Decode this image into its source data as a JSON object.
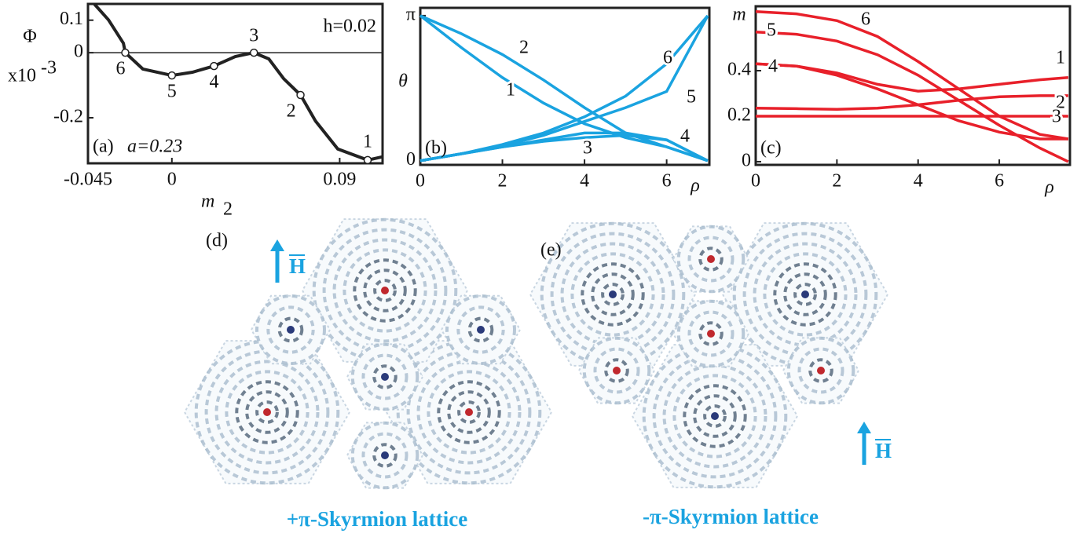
{
  "chart_data": [
    {
      "type": "line",
      "panel_label": "(a)",
      "annotation": "a=0.23",
      "note": "h=0.02",
      "y_label": "Φ",
      "y_multiplier": {
        "base": "x10",
        "exponent": "-3"
      },
      "x_label": {
        "base": "m",
        "sub": "2"
      },
      "x": [
        -0.0415,
        -0.034,
        -0.026,
        -0.025,
        -0.0156,
        0,
        0.011,
        0.0226,
        0.034,
        0.044,
        0.052,
        0.06,
        0.069,
        0.077,
        0.089,
        0.105,
        0.113
      ],
      "values": [
        0.149,
        0.101,
        0.029,
        0,
        -0.05,
        -0.07,
        -0.06,
        -0.041,
        -0.012,
        0,
        -0.019,
        -0.08,
        -0.13,
        -0.21,
        -0.296,
        -0.33,
        -0.32
      ],
      "color": "#222222",
      "points": {
        "x": [
          -0.025,
          0,
          0.0226,
          0.044,
          0.069,
          0.105
        ],
        "y": [
          0,
          -0.07,
          -0.041,
          0,
          -0.13,
          -0.33
        ],
        "labels": [
          "6",
          "5",
          "4",
          "3",
          "2",
          "1"
        ]
      },
      "zero_line": true,
      "xlim": [
        -0.045,
        0.113
      ],
      "ylim": [
        -0.34,
        0.15
      ],
      "xticks": [
        -0.045,
        0,
        0.09
      ],
      "yticks": [
        0.1,
        0,
        -0.2
      ]
    },
    {
      "type": "line",
      "panel_label": "(b)",
      "y_label": "θ",
      "x_label": "ρ",
      "x": [
        0,
        1,
        2,
        3,
        4,
        5,
        6,
        7
      ],
      "series": [
        {
          "name": "1",
          "color": "#1aa3e0",
          "values": [
            3.14,
            2.45,
            1.8,
            1.25,
            0.8,
            0.5,
            0.3,
            0
          ]
        },
        {
          "name": "2",
          "color": "#1aa3e0",
          "values": [
            3.14,
            2.75,
            2.3,
            1.75,
            1.15,
            0.6,
            0.3,
            0
          ]
        },
        {
          "name": "3",
          "color": "#1aa3e0",
          "values": [
            0,
            0.15,
            0.3,
            0.42,
            0.5,
            0.55,
            0.45,
            0
          ]
        },
        {
          "name": "4",
          "color": "#1aa3e0",
          "values": [
            0,
            0.15,
            0.3,
            0.45,
            0.6,
            0.6,
            0.45,
            0
          ]
        },
        {
          "name": "5",
          "color": "#1aa3e0",
          "values": [
            0,
            0.15,
            0.32,
            0.55,
            0.85,
            1.15,
            1.5,
            3.14
          ]
        },
        {
          "name": "6",
          "color": "#1aa3e0",
          "values": [
            0,
            0.15,
            0.35,
            0.6,
            0.95,
            1.4,
            2.1,
            3.14
          ]
        }
      ],
      "xlim": [
        0,
        7.04
      ],
      "ylim": [
        -0.09,
        3.31
      ],
      "xticks": [
        0,
        2,
        4,
        6
      ],
      "yticks": [
        0,
        {
          "value": 3.1416,
          "label": "π"
        }
      ]
    },
    {
      "type": "line",
      "panel_label": "(c)",
      "y_label": "m",
      "x_label": "ρ",
      "x": [
        0,
        1,
        2,
        3,
        4,
        5,
        6,
        7,
        7.7
      ],
      "series": [
        {
          "name": "1",
          "color": "#e8202a",
          "values": [
            0.43,
            0.42,
            0.39,
            0.34,
            0.31,
            0.32,
            0.34,
            0.36,
            0.37
          ]
        },
        {
          "name": "2",
          "color": "#e8202a",
          "values": [
            0.235,
            0.233,
            0.23,
            0.235,
            0.25,
            0.27,
            0.285,
            0.29,
            0.29
          ]
        },
        {
          "name": "3",
          "color": "#e8202a",
          "values": [
            0.2,
            0.2,
            0.2,
            0.2,
            0.2,
            0.2,
            0.2,
            0.2,
            0.2
          ]
        },
        {
          "name": "4",
          "color": "#e8202a",
          "values": [
            0.43,
            0.42,
            0.38,
            0.32,
            0.25,
            0.18,
            0.13,
            0.1,
            0.1
          ]
        },
        {
          "name": "5",
          "color": "#e8202a",
          "values": [
            0.57,
            0.56,
            0.53,
            0.47,
            0.38,
            0.27,
            0.16,
            0.06,
            0
          ]
        },
        {
          "name": "6",
          "color": "#e8202a",
          "values": [
            0.66,
            0.65,
            0.62,
            0.55,
            0.44,
            0.32,
            0.2,
            0.12,
            0.1
          ]
        }
      ],
      "xlim": [
        0,
        7.74
      ],
      "ylim": [
        -0.014,
        0.683
      ],
      "xticks": [
        0,
        2,
        4,
        6
      ],
      "yticks": [
        0,
        0.2,
        0.4
      ]
    }
  ],
  "panels": [
    {
      "label": "(d)",
      "field": "H",
      "caption": "+π-Skyrmion lattice"
    },
    {
      "label": "(e)",
      "field": "H",
      "caption": "-π-Skyrmion lattice"
    }
  ]
}
